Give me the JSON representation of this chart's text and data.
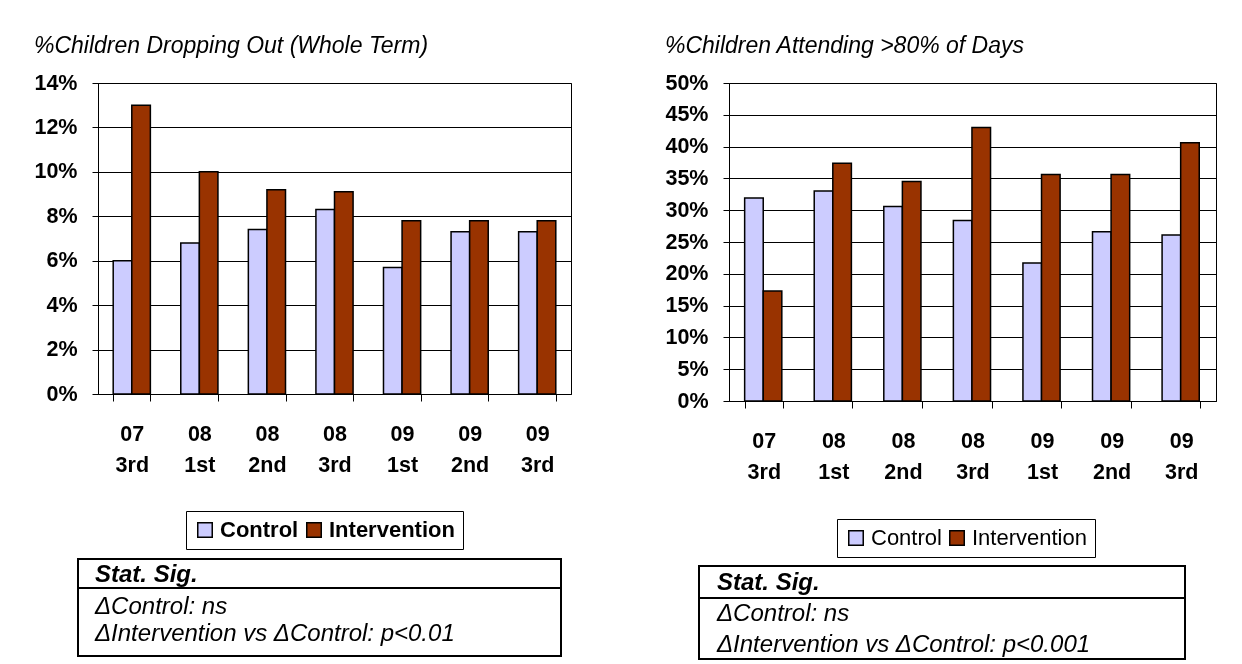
{
  "chart_data": [
    {
      "type": "bar",
      "title": "%Children Dropping Out (Whole Term)",
      "categories": [
        "07 3rd",
        "08 1st",
        "08 2nd",
        "08 3rd",
        "09 1st",
        "09 2nd",
        "09 3rd"
      ],
      "series": [
        {
          "name": "Control",
          "color": "#ccccff",
          "values": [
            6.0,
            6.8,
            7.4,
            8.3,
            5.7,
            7.3,
            7.3
          ]
        },
        {
          "name": "Intervention",
          "color": "#993300",
          "values": [
            13.0,
            10.0,
            9.2,
            9.1,
            7.8,
            7.8,
            7.8
          ]
        }
      ],
      "ylim": [
        0,
        14
      ],
      "yticks": [
        {
          "value": 0,
          "label": "0%"
        },
        {
          "value": 2,
          "label": "2%"
        },
        {
          "value": 4,
          "label": "4%"
        },
        {
          "value": 6,
          "label": "6%"
        },
        {
          "value": 8,
          "label": "8%"
        },
        {
          "value": 10,
          "label": "10%"
        },
        {
          "value": 12,
          "label": "12%"
        },
        {
          "value": 14,
          "label": "14%"
        }
      ],
      "grid": "y",
      "legend": "bottom",
      "annotations": [
        "Stat. Sig.",
        "ΔControl: ns",
        "ΔIntervention vs ΔControl: p<0.01"
      ]
    },
    {
      "type": "bar",
      "title": "%Children Attending >80% of Days",
      "categories": [
        "07 3rd",
        "08 1st",
        "08 2nd",
        "08 3rd",
        "09 1st",
        "09 2nd",
        "09 3rd"
      ],
      "series": [
        {
          "name": "Control",
          "color": "#ccccff",
          "values": [
            31.9,
            33.0,
            30.6,
            28.4,
            21.7,
            26.6,
            26.1
          ]
        },
        {
          "name": "Intervention",
          "color": "#993300",
          "values": [
            17.3,
            37.4,
            34.5,
            43.0,
            35.6,
            35.6,
            40.6
          ]
        }
      ],
      "ylim": [
        0,
        50
      ],
      "yticks": [
        {
          "value": 0,
          "label": "0%"
        },
        {
          "value": 5,
          "label": "5%"
        },
        {
          "value": 10,
          "label": "10%"
        },
        {
          "value": 15,
          "label": "15%"
        },
        {
          "value": 20,
          "label": "20%"
        },
        {
          "value": 25,
          "label": "25%"
        },
        {
          "value": 30,
          "label": "30%"
        },
        {
          "value": 35,
          "label": "35%"
        },
        {
          "value": 40,
          "label": "40%"
        },
        {
          "value": 45,
          "label": "45%"
        },
        {
          "value": 50,
          "label": "50%"
        }
      ],
      "grid": "y",
      "legend": "bottom",
      "annotations": [
        "Stat. Sig.",
        "ΔControl: ns",
        "ΔIntervention vs ΔControl: p<0.001"
      ]
    }
  ]
}
